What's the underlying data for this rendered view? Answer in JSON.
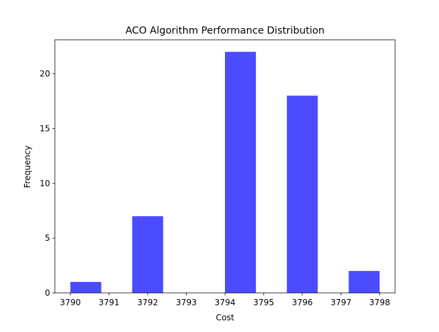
{
  "chart_data": {
    "type": "bar",
    "title": "ACO Algorithm Performance Distribution",
    "xlabel": "Cost",
    "ylabel": "Frequency",
    "bar_color": "#4b4bff",
    "bins": [
      {
        "x0": 3790.0,
        "x1": 3790.8,
        "value": 1
      },
      {
        "x0": 3790.8,
        "x1": 3791.6,
        "value": 0
      },
      {
        "x0": 3791.6,
        "x1": 3792.4,
        "value": 7
      },
      {
        "x0": 3792.4,
        "x1": 3793.2,
        "value": 0
      },
      {
        "x0": 3793.2,
        "x1": 3794.0,
        "value": 0
      },
      {
        "x0": 3794.0,
        "x1": 3794.8,
        "value": 22
      },
      {
        "x0": 3794.8,
        "x1": 3795.6,
        "value": 0
      },
      {
        "x0": 3795.6,
        "x1": 3796.4,
        "value": 18
      },
      {
        "x0": 3796.4,
        "x1": 3797.2,
        "value": 0
      },
      {
        "x0": 3797.2,
        "x1": 3798.0,
        "value": 2
      }
    ],
    "xlim": [
      3789.6,
      3798.4
    ],
    "ylim": [
      0,
      23.1
    ],
    "xticks": [
      "3790",
      "3791",
      "3792",
      "3793",
      "3794",
      "3795",
      "3796",
      "3797",
      "3798"
    ],
    "xtick_values": [
      3790,
      3791,
      3792,
      3793,
      3794,
      3795,
      3796,
      3797,
      3798
    ],
    "yticks": [
      "0",
      "5",
      "10",
      "15",
      "20"
    ],
    "ytick_values": [
      0,
      5,
      10,
      15,
      20
    ],
    "grid": false,
    "legend": "none"
  }
}
